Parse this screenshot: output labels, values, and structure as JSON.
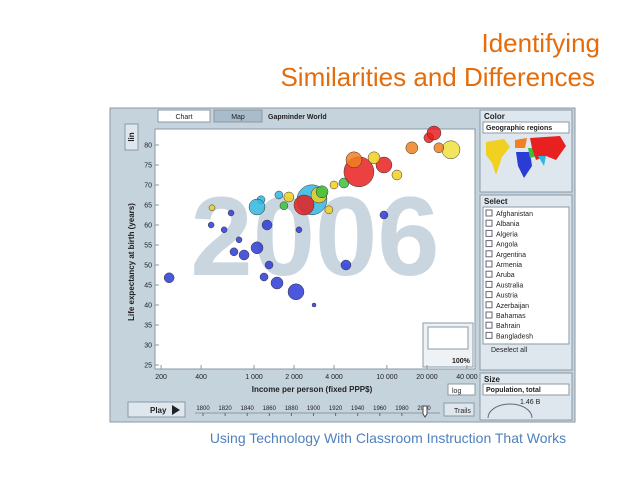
{
  "slide": {
    "title_line1": "Identifying",
    "title_line2": "Similarities and Differences",
    "footer": "Using Technology With Classroom Instruction That Works"
  },
  "ui": {
    "tabs": [
      "Chart",
      "Map"
    ],
    "app_title": "Gapminder World",
    "color_heading": "Color",
    "color_indicator": "Geographic regions",
    "select_heading": "Select",
    "select_items": [
      "Afghanistan",
      "Albania",
      "Algeria",
      "Angola",
      "Argentina",
      "Armenia",
      "Aruba",
      "Australia",
      "Austria",
      "Azerbaijan",
      "Bahamas",
      "Bahrain",
      "Bangladesh"
    ],
    "deselect": "Deselect all",
    "size_heading": "Size",
    "size_indicator": "Population, total",
    "size_readout": "1.46 B",
    "play": "Play",
    "trails": "Trails",
    "zoom": "100%",
    "x_scale": "log",
    "y_scale": "lin",
    "year_ticks": [
      1800,
      1820,
      1840,
      1860,
      1880,
      1900,
      1920,
      1940,
      1960,
      1980,
      2000
    ]
  },
  "chart_data": {
    "type": "bubble",
    "year_watermark": "2006",
    "x_label": "Income per person (fixed PPP$)",
    "y_label": "Life expectancy at birth (years)",
    "log_x": true,
    "xlim": [
      180,
      46000
    ],
    "ylim": [
      24,
      84
    ],
    "xticks": [
      200,
      400,
      {
        "value": 1000,
        "label": "1 000"
      },
      {
        "value": 2000,
        "label": "2 000"
      },
      {
        "value": 4000,
        "label": "4 000"
      },
      {
        "value": 10000,
        "label": "10 000"
      },
      {
        "value": 20000,
        "label": "20 000"
      },
      {
        "value": 40000,
        "label": "40 000"
      }
    ],
    "yticks": [
      25,
      30,
      35,
      40,
      45,
      50,
      55,
      60,
      65,
      70,
      75,
      80
    ],
    "x": [
      230,
      672,
      483,
      596,
      707,
      842,
      1054,
      1254,
      1298,
      1490,
      2070,
      1190,
      1130,
      1054,
      2730,
      2378,
      3080,
      4920,
      4750,
      4000,
      6160,
      5650,
      9500,
      8000,
      11900,
      15400,
      20700,
      22600,
      30300,
      24600,
      3250,
      1830,
      2180,
      2830,
      9500,
      1540,
      476,
      772,
      3660,
      1680
    ],
    "values": [
      46.8,
      63,
      64.3,
      58.8,
      53.3,
      52.5,
      54.3,
      60,
      50,
      45.5,
      43.3,
      47,
      66.3,
      64.5,
      66.3,
      65,
      67.5,
      50,
      70.5,
      70,
      73.3,
      76.3,
      75,
      76.8,
      72.5,
      79.3,
      81.8,
      83,
      78.8,
      79.3,
      68.3,
      67,
      58.8,
      40,
      62.5,
      67.5,
      60,
      56.3,
      63.8,
      64.8
    ],
    "sizes": [
      145,
      52,
      52,
      52,
      93,
      145,
      209,
      145,
      93,
      209,
      371,
      93,
      93,
      371,
      1305,
      580,
      371,
      145,
      145,
      93,
      1305,
      371,
      371,
      209,
      145,
      209,
      145,
      284,
      470,
      145,
      209,
      145,
      52,
      23,
      93,
      93,
      52,
      52,
      93,
      93
    ],
    "colors": [
      "#2b3bd6",
      "#2b3bd6",
      "#f0d020",
      "#2b3bd6",
      "#2b3bd6",
      "#2b3bd6",
      "#2b3bd6",
      "#2b3bd6",
      "#2b3bd6",
      "#2b3bd6",
      "#2b3bd6",
      "#2b3bd6",
      "#31b6e0",
      "#31b6e0",
      "#31b6e0",
      "#e82020",
      "#f0d020",
      "#2b3bd6",
      "#3cc03c",
      "#f0d020",
      "#e82020",
      "#f08020",
      "#e82020",
      "#f0d020",
      "#f0d020",
      "#f08020",
      "#e82020",
      "#e82020",
      "#f0e040",
      "#f08020",
      "#3cc03c",
      "#f0d020",
      "#2b3bd6",
      "#2b3bd6",
      "#2b3bd6",
      "#31b6e0",
      "#2b3bd6",
      "#2b3bd6",
      "#f0d020",
      "#3cc03c"
    ]
  }
}
